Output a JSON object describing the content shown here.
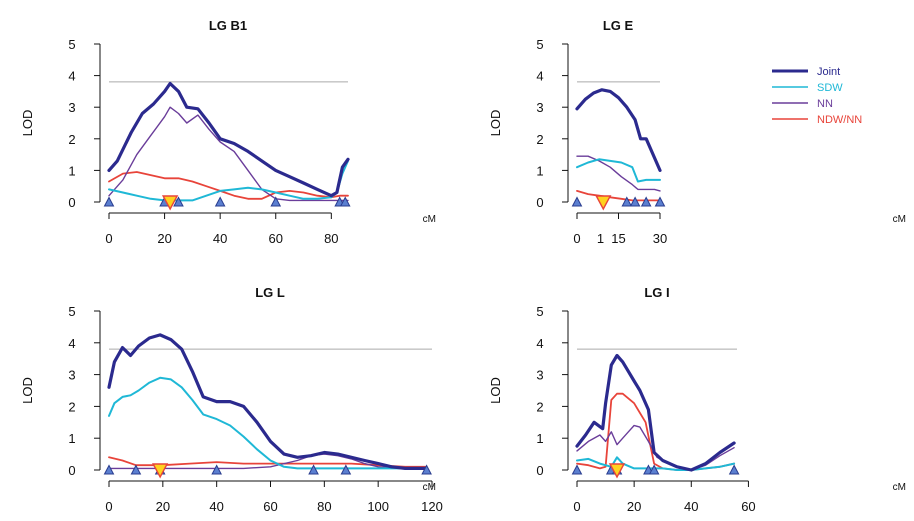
{
  "legend": {
    "placement": "top-right",
    "items": [
      {
        "name": "Joint",
        "color": "#2b2a8e"
      },
      {
        "name": "SDW",
        "color": "#1fb8d6"
      },
      {
        "name": "NN",
        "color": "#6a3d9a"
      },
      {
        "name": "NDW/NN",
        "color": "#e8443a"
      }
    ]
  },
  "colors": {
    "threshold": "#aaaaaa",
    "marker_fill": "#5b7fd0",
    "marker_stroke": "#2a3d8f",
    "peak_fill": "#ffd21f",
    "peak_stroke": "#e8443a"
  },
  "chart_data": [
    {
      "type": "line",
      "title": "LG B1",
      "xlabel": "cM",
      "ylabel": "LOD",
      "xticks": [
        0,
        20,
        40,
        60,
        80
      ],
      "yticks": [
        0,
        1,
        2,
        3,
        4,
        5
      ],
      "xlim": [
        0,
        86
      ],
      "ylim": [
        0,
        5
      ],
      "threshold": 3.8,
      "markers": [
        0,
        20,
        25,
        40,
        60,
        83,
        85
      ],
      "peak": 22,
      "series": [
        {
          "name": "Joint",
          "x": [
            0,
            3,
            8,
            12,
            16,
            20,
            22,
            25,
            28,
            32,
            36,
            40,
            45,
            50,
            55,
            60,
            65,
            70,
            75,
            80,
            82,
            84,
            86
          ],
          "y": [
            1.0,
            1.3,
            2.2,
            2.8,
            3.1,
            3.5,
            3.75,
            3.5,
            3.0,
            2.95,
            2.5,
            2.0,
            1.85,
            1.6,
            1.3,
            1.0,
            0.8,
            0.6,
            0.4,
            0.2,
            0.3,
            1.1,
            1.35
          ]
        },
        {
          "name": "SDW",
          "x": [
            0,
            5,
            10,
            15,
            20,
            25,
            30,
            35,
            40,
            45,
            50,
            55,
            60,
            65,
            70,
            75,
            80,
            82,
            84,
            86
          ],
          "y": [
            0.4,
            0.3,
            0.2,
            0.1,
            0.05,
            0.05,
            0.05,
            0.2,
            0.35,
            0.4,
            0.45,
            0.4,
            0.3,
            0.2,
            0.1,
            0.1,
            0.15,
            0.3,
            0.9,
            1.3
          ]
        },
        {
          "name": "NN",
          "x": [
            0,
            5,
            10,
            15,
            20,
            22,
            25,
            28,
            32,
            36,
            40,
            45,
            50,
            55,
            60,
            65,
            70,
            75,
            80,
            83,
            86
          ],
          "y": [
            0.2,
            0.7,
            1.5,
            2.1,
            2.7,
            3.0,
            2.8,
            2.5,
            2.75,
            2.3,
            1.9,
            1.6,
            1.0,
            0.4,
            0.1,
            0.05,
            0.05,
            0.05,
            0.05,
            0.05,
            0.05
          ]
        },
        {
          "name": "NDW/NN",
          "x": [
            0,
            5,
            10,
            15,
            20,
            25,
            30,
            35,
            40,
            45,
            50,
            55,
            60,
            65,
            70,
            75,
            80,
            83,
            86
          ],
          "y": [
            0.65,
            0.9,
            0.95,
            0.85,
            0.75,
            0.75,
            0.65,
            0.5,
            0.35,
            0.2,
            0.1,
            0.1,
            0.3,
            0.35,
            0.3,
            0.2,
            0.15,
            0.2,
            0.2
          ]
        }
      ]
    },
    {
      "type": "line",
      "title": "LG E",
      "xlabel": "cM",
      "ylabel": "LOD",
      "xticks": [
        0,
        15,
        30
      ],
      "extra_xtick_labels": [
        {
          "x": 8.5,
          "label": "1"
        }
      ],
      "yticks": [
        0,
        1,
        2,
        3,
        4,
        5
      ],
      "xlim": [
        0,
        30
      ],
      "ylim": [
        0,
        5
      ],
      "threshold": 3.8,
      "markers": [
        0,
        18,
        21,
        25,
        30
      ],
      "peak": 9.5,
      "series": [
        {
          "name": "Joint",
          "x": [
            0,
            3,
            6,
            9,
            12,
            15,
            18,
            21,
            23,
            25,
            27,
            30
          ],
          "y": [
            2.95,
            3.25,
            3.45,
            3.55,
            3.5,
            3.3,
            3.0,
            2.6,
            2.0,
            2.0,
            1.6,
            1.0
          ]
        },
        {
          "name": "SDW",
          "x": [
            0,
            4,
            8,
            12,
            16,
            20,
            22,
            25,
            28,
            30
          ],
          "y": [
            1.1,
            1.25,
            1.35,
            1.3,
            1.25,
            1.1,
            0.65,
            0.7,
            0.7,
            0.7
          ]
        },
        {
          "name": "NN",
          "x": [
            0,
            4,
            8,
            12,
            16,
            20,
            22,
            25,
            28,
            30
          ],
          "y": [
            1.45,
            1.45,
            1.3,
            1.1,
            0.8,
            0.55,
            0.4,
            0.4,
            0.4,
            0.35
          ]
        },
        {
          "name": "NDW/NN",
          "x": [
            0,
            4,
            8,
            12,
            16,
            20,
            25,
            30
          ],
          "y": [
            0.35,
            0.25,
            0.2,
            0.15,
            0.1,
            0.05,
            0.05,
            0.05
          ]
        }
      ]
    },
    {
      "type": "line",
      "title": "LG L",
      "xlabel": "cM",
      "ylabel": "LOD",
      "xticks": [
        0,
        20,
        40,
        60,
        80,
        100,
        120
      ],
      "yticks": [
        0,
        1,
        2,
        3,
        4,
        5
      ],
      "xlim": [
        0,
        120
      ],
      "ylim": [
        0,
        5
      ],
      "threshold": 3.8,
      "markers": [
        0,
        10,
        19,
        40,
        76,
        88,
        118
      ],
      "peak": 19,
      "series": [
        {
          "name": "Joint",
          "x": [
            0,
            2,
            5,
            8,
            11,
            15,
            19,
            23,
            27,
            31,
            35,
            40,
            45,
            50,
            55,
            60,
            65,
            70,
            75,
            80,
            85,
            90,
            95,
            100,
            105,
            110,
            115,
            118
          ],
          "y": [
            2.6,
            3.4,
            3.85,
            3.6,
            3.9,
            4.15,
            4.25,
            4.1,
            3.8,
            3.1,
            2.3,
            2.15,
            2.15,
            2.0,
            1.5,
            0.9,
            0.5,
            0.4,
            0.45,
            0.55,
            0.5,
            0.4,
            0.3,
            0.2,
            0.1,
            0.05,
            0.05,
            0.05
          ]
        },
        {
          "name": "SDW",
          "x": [
            0,
            2,
            5,
            8,
            11,
            15,
            19,
            23,
            27,
            31,
            35,
            40,
            45,
            50,
            55,
            60,
            65,
            70,
            80,
            90,
            100,
            110,
            118
          ],
          "y": [
            1.7,
            2.1,
            2.3,
            2.35,
            2.5,
            2.75,
            2.9,
            2.85,
            2.6,
            2.2,
            1.75,
            1.6,
            1.4,
            1.05,
            0.65,
            0.3,
            0.1,
            0.05,
            0.05,
            0.05,
            0.05,
            0.05,
            0.05
          ]
        },
        {
          "name": "NN",
          "x": [
            0,
            10,
            20,
            30,
            40,
            50,
            60,
            70,
            75,
            80,
            85,
            90,
            95,
            100,
            110,
            118
          ],
          "y": [
            0.05,
            0.05,
            0.05,
            0.05,
            0.05,
            0.05,
            0.1,
            0.3,
            0.45,
            0.5,
            0.45,
            0.35,
            0.2,
            0.1,
            0.05,
            0.05
          ]
        },
        {
          "name": "NDW/NN",
          "x": [
            0,
            5,
            10,
            20,
            30,
            40,
            50,
            60,
            70,
            80,
            90,
            100,
            110,
            118
          ],
          "y": [
            0.4,
            0.3,
            0.15,
            0.15,
            0.2,
            0.25,
            0.2,
            0.2,
            0.2,
            0.2,
            0.2,
            0.15,
            0.1,
            0.1
          ]
        }
      ]
    },
    {
      "type": "line",
      "title": "LG I",
      "xlabel": "cM",
      "ylabel": "LOD",
      "xticks": [
        0,
        20,
        40,
        60
      ],
      "yticks": [
        0,
        1,
        2,
        3,
        4,
        5
      ],
      "xlim": [
        0,
        56
      ],
      "ylim": [
        0,
        5
      ],
      "threshold": 3.8,
      "markers": [
        0,
        12,
        14,
        25,
        27,
        55
      ],
      "peak": 14,
      "series": [
        {
          "name": "Joint",
          "x": [
            0,
            3,
            6,
            9,
            10,
            12,
            14,
            16,
            18,
            20,
            22,
            25,
            27,
            30,
            35,
            40,
            45,
            50,
            55
          ],
          "y": [
            0.75,
            1.1,
            1.5,
            1.3,
            2.1,
            3.3,
            3.6,
            3.4,
            3.1,
            2.8,
            2.5,
            1.9,
            0.55,
            0.3,
            0.1,
            0.0,
            0.2,
            0.55,
            0.85
          ]
        },
        {
          "name": "SDW",
          "x": [
            0,
            4,
            8,
            12,
            14,
            16,
            20,
            25,
            30,
            35,
            40,
            45,
            50,
            55
          ],
          "y": [
            0.3,
            0.35,
            0.2,
            0.1,
            0.4,
            0.2,
            0.05,
            0.05,
            0.05,
            0.0,
            0.0,
            0.05,
            0.1,
            0.2
          ]
        },
        {
          "name": "NN",
          "x": [
            0,
            4,
            8,
            10,
            12,
            14,
            16,
            18,
            20,
            22,
            25,
            28,
            32,
            36,
            40,
            45,
            50,
            55
          ],
          "y": [
            0.6,
            0.9,
            1.1,
            0.9,
            1.2,
            0.8,
            1.0,
            1.2,
            1.4,
            1.35,
            0.9,
            0.4,
            0.2,
            0.05,
            0.0,
            0.15,
            0.45,
            0.7
          ]
        },
        {
          "name": "NDW/NN",
          "x": [
            0,
            4,
            8,
            10,
            12,
            14,
            16,
            20,
            24,
            27,
            30,
            35,
            40,
            45,
            50,
            55
          ],
          "y": [
            0.2,
            0.15,
            0.05,
            0.1,
            2.2,
            2.4,
            2.4,
            2.1,
            1.5,
            0.2,
            0.05,
            0.0,
            0.0,
            0.05,
            0.1,
            0.2
          ]
        }
      ]
    }
  ]
}
